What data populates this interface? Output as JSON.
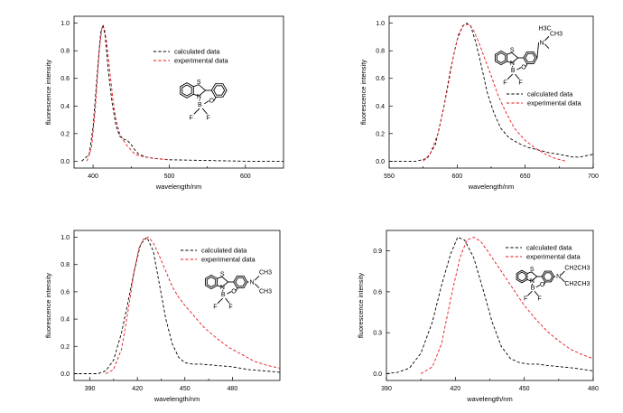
{
  "chart_data": [
    {
      "type": "line",
      "xlabel": "wavelength/nm",
      "ylabel": "fluorescence intensity",
      "xlim": [
        375,
        650
      ],
      "ylim": [
        -0.05,
        1.05
      ],
      "xticks": [
        400,
        500,
        600
      ],
      "yticks": [
        0.0,
        0.2,
        0.4,
        0.6,
        0.8,
        1.0
      ],
      "legend_position": "top-right",
      "series": [
        {
          "name": "calculated data",
          "color": "#000000",
          "x": [
            385,
            395,
            400,
            405,
            410,
            413,
            416,
            420,
            425,
            430,
            435,
            440,
            445,
            450,
            455,
            460,
            470,
            480,
            500,
            550,
            600,
            650
          ],
          "y": [
            0.0,
            0.05,
            0.25,
            0.6,
            0.93,
            0.99,
            0.9,
            0.65,
            0.42,
            0.26,
            0.18,
            0.16,
            0.15,
            0.12,
            0.08,
            0.05,
            0.03,
            0.02,
            0.01,
            0.005,
            0.0,
            0.0
          ]
        },
        {
          "name": "experimental data",
          "color": "#e8141b",
          "x": [
            392,
            398,
            403,
            408,
            412,
            415,
            418,
            422,
            426,
            430,
            435,
            440,
            445,
            450,
            455,
            460,
            470,
            480,
            500
          ],
          "y": [
            0.0,
            0.1,
            0.38,
            0.8,
            0.98,
            0.96,
            0.85,
            0.65,
            0.45,
            0.3,
            0.2,
            0.15,
            0.11,
            0.08,
            0.05,
            0.04,
            0.03,
            0.02,
            0.01
          ]
        }
      ]
    },
    {
      "type": "line",
      "xlabel": "wavelength/nm",
      "ylabel": "fluorescence intensity",
      "xlim": [
        550,
        700
      ],
      "ylim": [
        -0.05,
        1.05
      ],
      "xticks": [
        550,
        600,
        650,
        700
      ],
      "yticks": [
        0.0,
        0.2,
        0.4,
        0.6,
        0.8,
        1.0
      ],
      "legend_position": "center-right",
      "series": [
        {
          "name": "calculated data",
          "color": "#000000",
          "x": [
            550,
            570,
            578,
            584,
            590,
            595,
            600,
            604,
            607,
            610,
            614,
            618,
            622,
            627,
            632,
            638,
            645,
            652,
            660,
            668,
            675,
            680,
            685,
            690,
            695,
            700
          ],
          "y": [
            0.0,
            0.0,
            0.02,
            0.12,
            0.38,
            0.66,
            0.88,
            0.98,
            1.0,
            0.98,
            0.85,
            0.68,
            0.5,
            0.35,
            0.24,
            0.17,
            0.13,
            0.1,
            0.08,
            0.06,
            0.05,
            0.04,
            0.03,
            0.03,
            0.04,
            0.05
          ]
        },
        {
          "name": "experimental data",
          "color": "#e8141b",
          "x": [
            575,
            580,
            586,
            592,
            597,
            601,
            605,
            609,
            612,
            616,
            620,
            625,
            630,
            636,
            642,
            650,
            658,
            665,
            672,
            680
          ],
          "y": [
            0.0,
            0.05,
            0.2,
            0.48,
            0.75,
            0.92,
            0.99,
            0.99,
            0.95,
            0.86,
            0.75,
            0.62,
            0.48,
            0.35,
            0.24,
            0.15,
            0.09,
            0.05,
            0.02,
            0.0
          ]
        }
      ]
    },
    {
      "type": "line",
      "xlabel": "wavelength/nm",
      "ylabel": "fluorescence intensity",
      "xlim": [
        380,
        510
      ],
      "ylim": [
        -0.05,
        1.05
      ],
      "xticks": [
        390,
        420,
        450,
        480
      ],
      "yticks": [
        0.0,
        0.2,
        0.4,
        0.6,
        0.8,
        1.0
      ],
      "legend_position": "top-right",
      "series": [
        {
          "name": "calculated data",
          "color": "#000000",
          "x": [
            380,
            395,
            400,
            405,
            410,
            414,
            418,
            422,
            426,
            430,
            434,
            438,
            442,
            446,
            450,
            455,
            460,
            470,
            480,
            490,
            500,
            510
          ],
          "y": [
            0.0,
            0.0,
            0.02,
            0.1,
            0.3,
            0.52,
            0.75,
            0.95,
            1.0,
            0.9,
            0.65,
            0.4,
            0.22,
            0.12,
            0.08,
            0.07,
            0.07,
            0.06,
            0.05,
            0.03,
            0.02,
            0.01
          ]
        },
        {
          "name": "experimental data",
          "color": "#e8141b",
          "x": [
            400,
            405,
            410,
            414,
            418,
            421,
            424,
            427,
            430,
            434,
            438,
            442,
            446,
            450,
            456,
            462,
            470,
            478,
            486,
            494,
            502,
            510
          ],
          "y": [
            0.0,
            0.03,
            0.18,
            0.45,
            0.75,
            0.92,
            0.99,
            1.0,
            0.96,
            0.86,
            0.75,
            0.64,
            0.56,
            0.5,
            0.42,
            0.34,
            0.26,
            0.19,
            0.14,
            0.09,
            0.06,
            0.04
          ]
        }
      ]
    },
    {
      "type": "line",
      "xlabel": "wavelength/nm",
      "ylabel": "fluorescence intensity",
      "xlim": [
        390,
        480
      ],
      "ylim": [
        -0.05,
        1.05
      ],
      "xticks": [
        390,
        420,
        450,
        480
      ],
      "yticks": [
        0.0,
        0.3,
        0.6,
        0.9
      ],
      "legend_position": "top-right",
      "series": [
        {
          "name": "calculated data",
          "color": "#000000",
          "x": [
            390,
            395,
            400,
            405,
            410,
            414,
            418,
            421,
            424,
            428,
            432,
            436,
            440,
            444,
            448,
            452,
            456,
            460,
            466,
            472,
            480
          ],
          "y": [
            0.0,
            0.01,
            0.04,
            0.15,
            0.38,
            0.65,
            0.88,
            1.0,
            0.98,
            0.85,
            0.62,
            0.38,
            0.2,
            0.11,
            0.08,
            0.07,
            0.07,
            0.06,
            0.05,
            0.04,
            0.02
          ]
        },
        {
          "name": "experimental data",
          "color": "#e8141b",
          "x": [
            405,
            410,
            414,
            418,
            422,
            425,
            428,
            431,
            434,
            438,
            442,
            446,
            450,
            455,
            460,
            465,
            470,
            475,
            480
          ],
          "y": [
            0.0,
            0.05,
            0.22,
            0.55,
            0.85,
            0.98,
            1.0,
            0.97,
            0.9,
            0.8,
            0.7,
            0.6,
            0.5,
            0.4,
            0.31,
            0.24,
            0.18,
            0.14,
            0.11
          ]
        }
      ]
    }
  ],
  "molecules": [
    {
      "atoms": [
        "S",
        "N",
        "B",
        "O",
        "F",
        "F"
      ]
    },
    {
      "atoms": [
        "S",
        "N",
        "B",
        "O",
        "F",
        "F",
        "N",
        "H3C",
        "CH3"
      ]
    },
    {
      "atoms": [
        "S",
        "N",
        "B",
        "O",
        "F",
        "F",
        "N",
        "CH3",
        "CH3"
      ]
    },
    {
      "atoms": [
        "S",
        "N",
        "B",
        "O",
        "F",
        "F",
        "N",
        "CH2CH3",
        "CH2CH3"
      ]
    }
  ]
}
